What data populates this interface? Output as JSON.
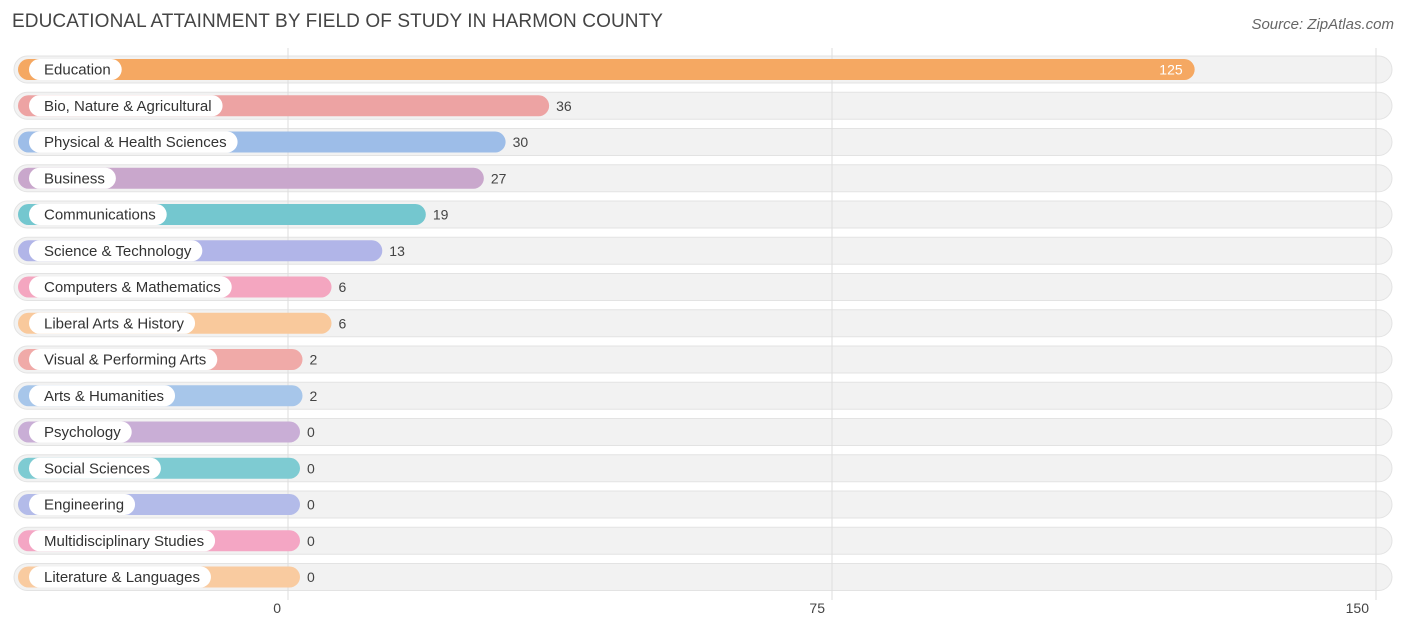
{
  "title": "EDUCATIONAL ATTAINMENT BY FIELD OF STUDY IN HARMON COUNTY",
  "source": "Source: ZipAtlas.com",
  "chart_data": {
    "type": "bar",
    "orientation": "horizontal",
    "categories": [
      "Education",
      "Bio, Nature & Agricultural",
      "Physical & Health Sciences",
      "Business",
      "Communications",
      "Science & Technology",
      "Computers & Mathematics",
      "Liberal Arts & History",
      "Visual & Performing Arts",
      "Arts & Humanities",
      "Psychology",
      "Social Sciences",
      "Engineering",
      "Multidisciplinary Studies",
      "Literature & Languages"
    ],
    "values": [
      125,
      36,
      30,
      27,
      19,
      13,
      6,
      6,
      2,
      2,
      0,
      0,
      0,
      0,
      0
    ],
    "colors": [
      "#f5a862",
      "#eda3a3",
      "#9dbde8",
      "#c9a7cc",
      "#74c7cf",
      "#b1b5e8",
      "#f4a6c0",
      "#f9c99c",
      "#f0aaa8",
      "#a7c6ea",
      "#c9aed6",
      "#7ecbd2",
      "#b3bbe9",
      "#f4a6c4",
      "#f9cba0"
    ],
    "xlim": [
      0,
      150
    ],
    "xticks": [
      0,
      75,
      150
    ],
    "grid": true,
    "legend": "none"
  }
}
